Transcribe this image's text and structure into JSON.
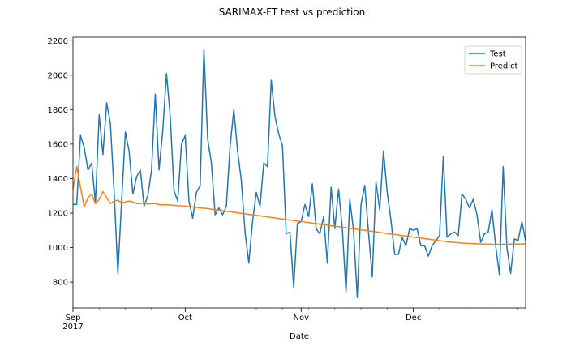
{
  "chart_data": {
    "type": "line",
    "title": "SARIMAX-FT test vs prediction",
    "xlabel": "Date",
    "ylabel": "",
    "x_start": "2017-09-01",
    "x_end": "2017-12-31",
    "x_ticks": [
      {
        "date": "2017-09-01",
        "label": "Sep",
        "sublabel": "2017"
      },
      {
        "date": "2017-10-01",
        "label": "Oct",
        "sublabel": ""
      },
      {
        "date": "2017-11-01",
        "label": "Nov",
        "sublabel": ""
      },
      {
        "date": "2017-12-01",
        "label": "Dec",
        "sublabel": ""
      }
    ],
    "ylim": [
      650,
      2220
    ],
    "y_ticks": [
      800,
      1000,
      1200,
      1400,
      1600,
      1800,
      2000,
      2200
    ],
    "grid": false,
    "legend": "top-right",
    "series": [
      {
        "name": "Test",
        "color": "#1f77b4",
        "values": [
          1250,
          1250,
          1650,
          1580,
          1450,
          1490,
          1260,
          1770,
          1540,
          1840,
          1720,
          1320,
          850,
          1270,
          1670,
          1560,
          1310,
          1410,
          1450,
          1240,
          1300,
          1450,
          1890,
          1450,
          1680,
          2010,
          1760,
          1330,
          1270,
          1600,
          1650,
          1270,
          1170,
          1320,
          1360,
          2150,
          1630,
          1490,
          1190,
          1230,
          1190,
          1240,
          1590,
          1800,
          1560,
          1390,
          1090,
          910,
          1150,
          1320,
          1240,
          1490,
          1470,
          1970,
          1760,
          1660,
          1590,
          1080,
          1090,
          770,
          1140,
          1150,
          1250,
          1180,
          1370,
          1110,
          1080,
          1180,
          910,
          1350,
          1110,
          1340,
          1110,
          740,
          1280,
          1100,
          710,
          1250,
          1360,
          1090,
          830,
          1380,
          1220,
          1560,
          1320,
          1160,
          960,
          960,
          1060,
          1010,
          1110,
          1100,
          1110,
          1010,
          1010,
          950,
          1010,
          1040,
          1070,
          1530,
          1060,
          1080,
          1090,
          1070,
          1310,
          1280,
          1230,
          1280,
          1190,
          1030,
          1080,
          1090,
          1220,
          1010,
          840,
          1470,
          1000,
          850,
          1050,
          1040,
          1150,
          1040
        ]
      },
      {
        "name": "Predict",
        "color": "#ff7f0e",
        "values": [
          1340,
          1470,
          1350,
          1235,
          1290,
          1310,
          1255,
          1280,
          1325,
          1290,
          1255,
          1270,
          1275,
          1260,
          1265,
          1270,
          1265,
          1255,
          1255,
          1258,
          1252,
          1255,
          1255,
          1250,
          1248,
          1248,
          1247,
          1245,
          1243,
          1242,
          1240,
          1238,
          1236,
          1233,
          1230,
          1228,
          1226,
          1223,
          1220,
          1217,
          1214,
          1211,
          1208,
          1205,
          1202,
          1199,
          1196,
          1193,
          1190,
          1187,
          1184,
          1181,
          1178,
          1175,
          1172,
          1169,
          1166,
          1163,
          1160,
          1157,
          1154,
          1151,
          1148,
          1145,
          1142,
          1139,
          1136,
          1133,
          1130,
          1127,
          1124,
          1121,
          1118,
          1115,
          1112,
          1109,
          1106,
          1103,
          1100,
          1097,
          1094,
          1091,
          1088,
          1085,
          1082,
          1079,
          1076,
          1073,
          1070,
          1067,
          1064,
          1061,
          1058,
          1055,
          1052,
          1049,
          1046,
          1043,
          1040,
          1037,
          1034,
          1032,
          1030,
          1028,
          1026,
          1025,
          1024,
          1023,
          1022,
          1021,
          1020,
          1020,
          1019,
          1019,
          1019,
          1019,
          1019,
          1020,
          1020,
          1020,
          1021,
          1022
        ]
      }
    ]
  }
}
